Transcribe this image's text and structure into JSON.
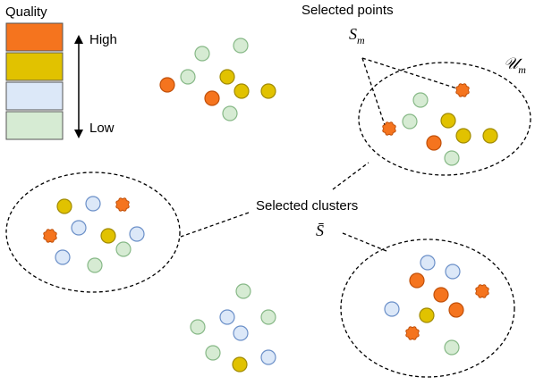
{
  "legend": {
    "title": "Quality",
    "high_label": "High",
    "low_label": "Low",
    "levels": [
      {
        "name": "orange",
        "color": "#f5741e"
      },
      {
        "name": "yellow",
        "color": "#e1c200"
      },
      {
        "name": "blue",
        "color": "#dce8f8"
      },
      {
        "name": "green",
        "color": "#d6ebd3"
      }
    ]
  },
  "palette": {
    "orange_fill": "#f5741e",
    "orange_stroke": "#c0500a",
    "yellow_fill": "#e1c200",
    "yellow_stroke": "#a08a00",
    "blue_fill": "#dce8f8",
    "blue_stroke": "#6a8fc8",
    "green_fill": "#d6ebd3",
    "green_stroke": "#86b886"
  },
  "labels": {
    "selected_points": "Selected points",
    "selected_clusters": "Selected clusters",
    "s_m_base": "S",
    "s_m_sub": "m",
    "u_m_base": "𝒰",
    "u_m_sub": "m",
    "s_bar": "S̄"
  }
}
